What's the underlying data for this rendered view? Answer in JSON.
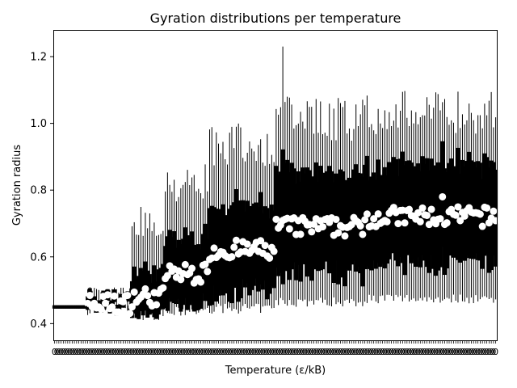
{
  "chart_data": {
    "type": "violin",
    "title": "Gyration distributions per temperature",
    "xlabel": "Temperature (ε/kB)",
    "ylabel": "Gyration radius",
    "ylim": [
      0.35,
      1.28
    ],
    "yticks": [
      "0.4",
      "0.6",
      "0.8",
      "1.0",
      "1.2"
    ],
    "ytick_values": [
      0.4,
      0.6,
      0.8,
      1.0,
      1.2
    ],
    "n_categories": 200,
    "x_tick_labels_legible": false,
    "x_tick_label_glyph": "0",
    "grid": false,
    "legend": "none",
    "colors": {
      "violin": "#000000",
      "median_marker": "#ffffff",
      "axes": "#000000"
    },
    "series": [
      {
        "segments": [
          {
            "from_index": 0,
            "to_index": 15,
            "median": 0.45,
            "min": 0.445,
            "max": 0.455
          },
          {
            "from_index": 15,
            "to_index": 35,
            "median": 0.46,
            "min": 0.42,
            "max": 0.51
          },
          {
            "from_index": 35,
            "to_index": 50,
            "median": 0.48,
            "min": 0.41,
            "max": 0.75
          },
          {
            "from_index": 50,
            "to_index": 70,
            "median": 0.55,
            "min": 0.42,
            "max": 0.88
          },
          {
            "from_index": 70,
            "to_index": 100,
            "median": 0.62,
            "min": 0.43,
            "max": 1.0
          },
          {
            "from_index": 100,
            "to_index": 140,
            "median": 0.69,
            "min": 0.45,
            "max": 1.08
          },
          {
            "from_index": 140,
            "to_index": 200,
            "median": 0.72,
            "min": 0.46,
            "max": 1.1
          }
        ],
        "peak_max": {
          "index": 103,
          "value": 1.23
        },
        "outlier_median": {
          "index": 175,
          "value": 0.78
        }
      }
    ]
  }
}
